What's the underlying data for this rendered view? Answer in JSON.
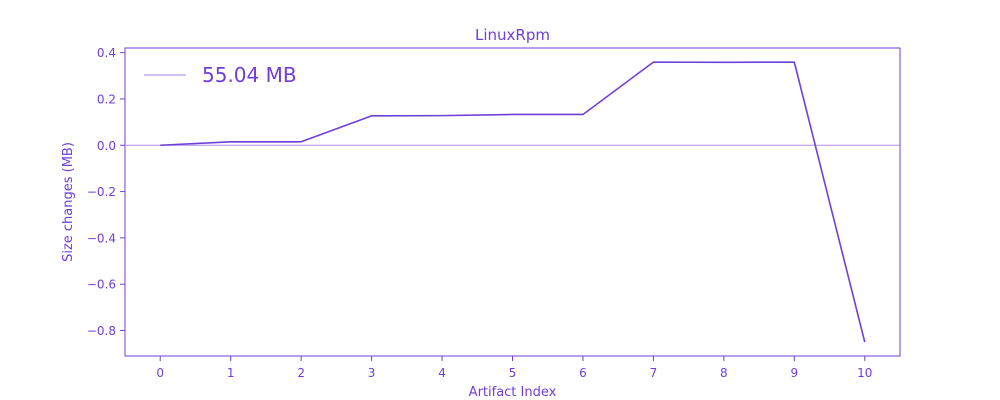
{
  "chart_data": {
    "type": "line",
    "title": "LinuxRpm",
    "xlabel": "Artifact Index",
    "ylabel": "Size changes (MB)",
    "x": [
      0,
      1,
      2,
      3,
      4,
      5,
      6,
      7,
      8,
      9,
      10
    ],
    "series": [
      {
        "name": "55.04 MB",
        "values": [
          0.0,
          0.015,
          0.015,
          0.127,
          0.128,
          0.133,
          0.133,
          0.359,
          0.358,
          0.359,
          -0.85
        ]
      }
    ],
    "xlim": [
      -0.5,
      10.5
    ],
    "ylim": [
      -0.91,
      0.42
    ],
    "xticks": [
      0,
      1,
      2,
      3,
      4,
      5,
      6,
      7,
      8,
      9,
      10
    ],
    "yticks": [
      0.4,
      0.2,
      0.0,
      -0.2,
      -0.4,
      -0.6,
      -0.8
    ],
    "ytick_labels": [
      "0.4",
      "0.2",
      "0.0",
      "−0.2",
      "−0.4",
      "−0.6",
      "−0.8"
    ],
    "reference_line": 0,
    "grid": false,
    "legend_position": "upper-left",
    "colors": {
      "line": "#6f3fd8",
      "text": "#6f3fd8",
      "reference": "#b38be6",
      "legend_line": "#a383e6"
    }
  }
}
